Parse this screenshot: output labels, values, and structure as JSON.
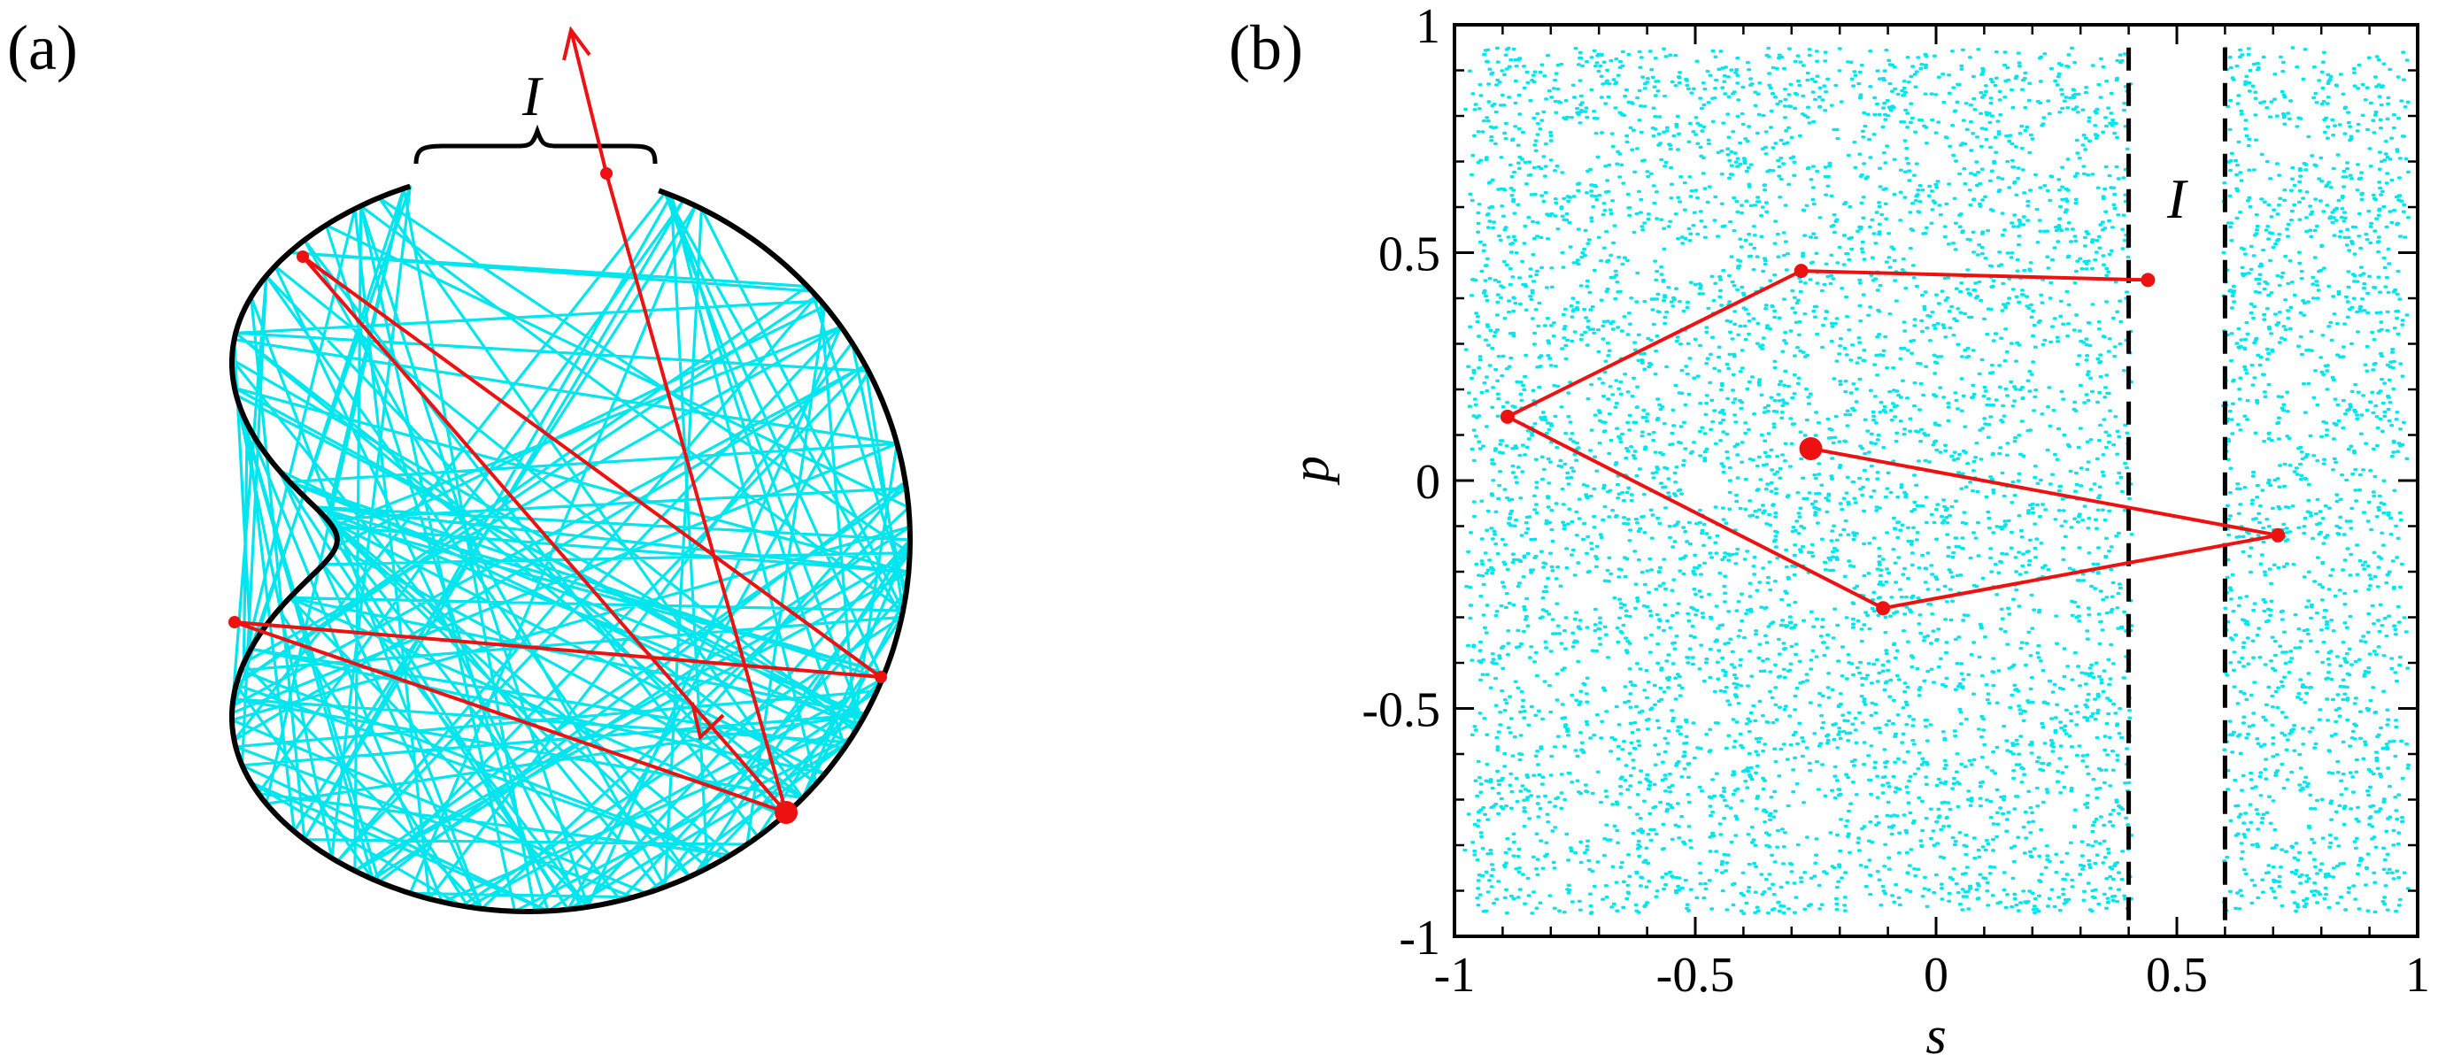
{
  "panels": {
    "a": {
      "label": "(a)",
      "opening_label": "I"
    },
    "b": {
      "label": "(b)",
      "interval_label": "I"
    }
  },
  "colors": {
    "chaotic_sea": "#00e5ee",
    "orbit": "#ee1111",
    "boundary": "#000000"
  },
  "chart_data": {
    "type": "scatter",
    "panel": "b",
    "xlabel": "s",
    "ylabel": "p",
    "xlim": [
      -1,
      1
    ],
    "ylim": [
      -1,
      1
    ],
    "x_ticks": [
      "-1",
      "-0.5",
      "0",
      "0.5",
      "1"
    ],
    "y_ticks": [
      "-1",
      "-0.5",
      "0",
      "0.5",
      "1"
    ],
    "hole_interval": [
      0.4,
      0.6
    ],
    "orbit": {
      "points": [
        {
          "s": -0.26,
          "p": 0.07
        },
        {
          "s": 0.71,
          "p": -0.12
        },
        {
          "s": -0.11,
          "p": -0.28
        },
        {
          "s": -0.89,
          "p": 0.14
        },
        {
          "s": -0.28,
          "p": 0.46
        },
        {
          "s": 0.44,
          "p": 0.44
        }
      ]
    }
  }
}
